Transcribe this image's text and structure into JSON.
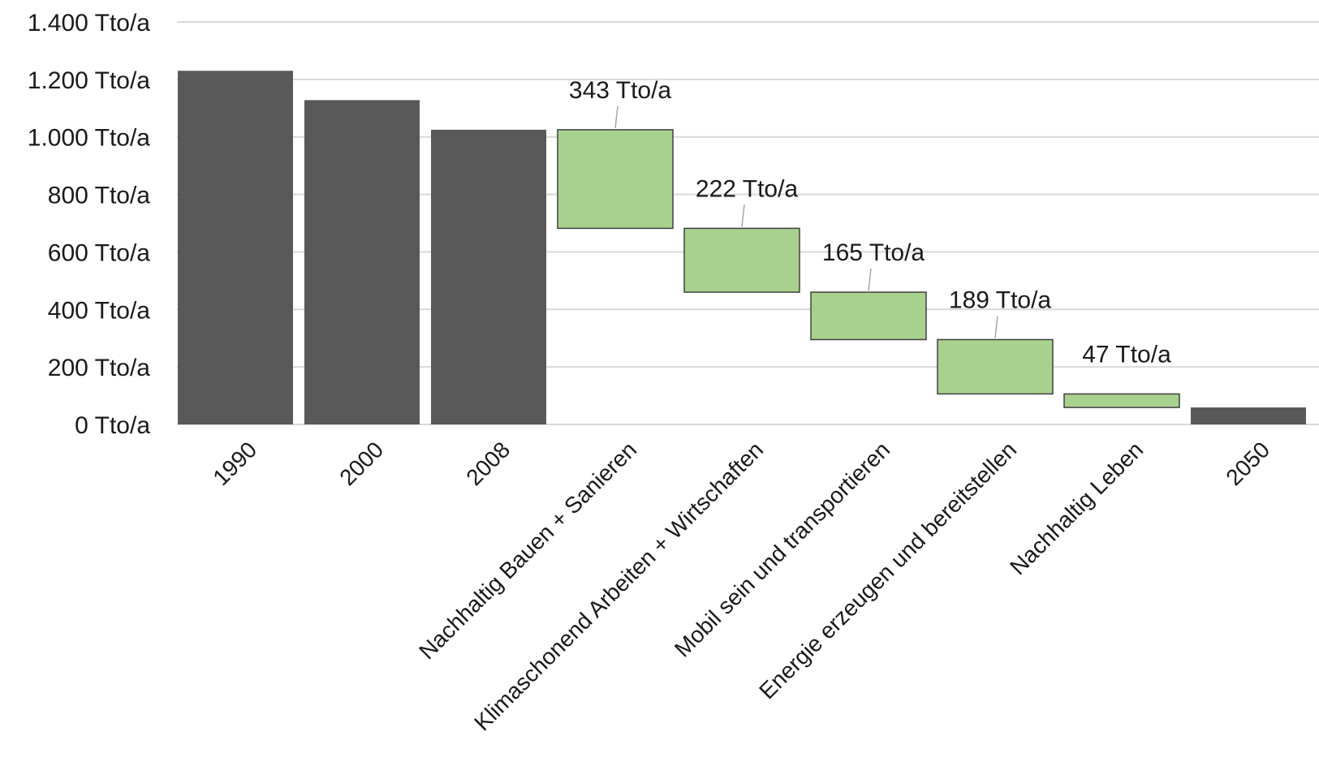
{
  "chart_data": {
    "type": "bar",
    "subtype": "waterfall",
    "title": "",
    "xlabel": "",
    "ylabel": "",
    "ylim": [
      0,
      1400
    ],
    "yticks": [
      0,
      200,
      400,
      600,
      800,
      1000,
      1200,
      1400
    ],
    "ytick_labels": [
      "0 Tto/a",
      "200 Tto/a",
      "400 Tto/a",
      "600 Tto/a",
      "800 Tto/a",
      "1.000 Tto/a",
      "1.200 Tto/a",
      "1.400 Tto/a"
    ],
    "grid": true,
    "legend": "none",
    "colors": {
      "total": "#595959",
      "reduction": "#a9d18e",
      "reduction_border": "#404040"
    },
    "categories": [
      "1990",
      "2000",
      "2008",
      "Nachhaltig Bauen + Sanieren",
      "Klimaschonend Arbeiten + Wirtschaften",
      "Mobil sein und transportieren",
      "Energie erzeugen und bereitstellen",
      "Nachhaltig Leben",
      "2050"
    ],
    "bars": [
      {
        "category": "1990",
        "kind": "total",
        "start": 0,
        "end": 1230,
        "label": ""
      },
      {
        "category": "2000",
        "kind": "total",
        "start": 0,
        "end": 1128,
        "label": ""
      },
      {
        "category": "2008",
        "kind": "total",
        "start": 0,
        "end": 1025,
        "label": ""
      },
      {
        "category": "Nachhaltig Bauen + Sanieren",
        "kind": "reduction",
        "start": 1025,
        "end": 682,
        "value": 343,
        "label": "343 Tto/a"
      },
      {
        "category": "Klimaschonend Arbeiten + Wirtschaften",
        "kind": "reduction",
        "start": 682,
        "end": 460,
        "value": 222,
        "label": "222 Tto/a"
      },
      {
        "category": "Mobil sein und transportieren",
        "kind": "reduction",
        "start": 460,
        "end": 295,
        "value": 165,
        "label": "165 Tto/a"
      },
      {
        "category": "Energie erzeugen und bereitstellen",
        "kind": "reduction",
        "start": 295,
        "end": 106,
        "value": 189,
        "label": "189 Tto/a"
      },
      {
        "category": "Nachhaltig Leben",
        "kind": "reduction",
        "start": 106,
        "end": 59,
        "value": 47,
        "label": "47 Tto/a"
      },
      {
        "category": "2050",
        "kind": "total",
        "start": 0,
        "end": 59,
        "label": ""
      }
    ]
  }
}
